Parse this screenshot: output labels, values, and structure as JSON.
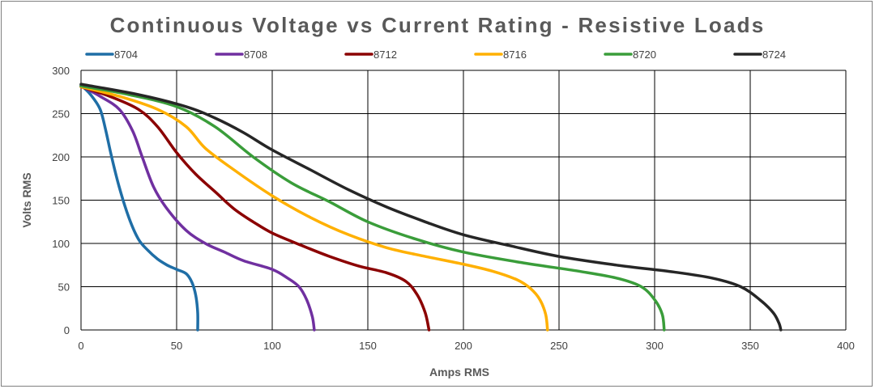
{
  "chart_data": {
    "type": "line",
    "title": "Continuous Voltage vs Current Rating - Resistive Loads",
    "xlabel": "Amps RMS",
    "ylabel": "Volts RMS",
    "xlim": [
      0,
      400
    ],
    "ylim": [
      0,
      300
    ],
    "x_ticks": [
      0,
      50,
      100,
      150,
      200,
      250,
      300,
      350,
      400
    ],
    "y_ticks": [
      0,
      50,
      100,
      150,
      200,
      250,
      300
    ],
    "grid": true,
    "legend_position": "top",
    "series": [
      {
        "name": "8704",
        "color": "#1f6ea6",
        "points": [
          [
            0,
            283
          ],
          [
            5,
            272
          ],
          [
            10,
            255
          ],
          [
            13,
            230
          ],
          [
            16,
            200
          ],
          [
            20,
            165
          ],
          [
            25,
            130
          ],
          [
            30,
            105
          ],
          [
            35,
            92
          ],
          [
            40,
            82
          ],
          [
            45,
            75
          ],
          [
            50,
            70
          ],
          [
            55,
            65
          ],
          [
            58,
            55
          ],
          [
            60,
            40
          ],
          [
            61,
            20
          ],
          [
            61,
            0
          ]
        ]
      },
      {
        "name": "8708",
        "color": "#7030a0",
        "points": [
          [
            0,
            282
          ],
          [
            10,
            270
          ],
          [
            20,
            255
          ],
          [
            27,
            230
          ],
          [
            32,
            200
          ],
          [
            38,
            165
          ],
          [
            45,
            140
          ],
          [
            55,
            115
          ],
          [
            65,
            100
          ],
          [
            75,
            90
          ],
          [
            85,
            80
          ],
          [
            100,
            70
          ],
          [
            108,
            60
          ],
          [
            114,
            50
          ],
          [
            118,
            35
          ],
          [
            121,
            15
          ],
          [
            122,
            0
          ]
        ]
      },
      {
        "name": "8712",
        "color": "#8b0000",
        "points": [
          [
            0,
            281
          ],
          [
            15,
            270
          ],
          [
            30,
            255
          ],
          [
            40,
            235
          ],
          [
            50,
            205
          ],
          [
            60,
            180
          ],
          [
            70,
            160
          ],
          [
            80,
            140
          ],
          [
            90,
            125
          ],
          [
            100,
            112
          ],
          [
            115,
            98
          ],
          [
            130,
            85
          ],
          [
            145,
            74
          ],
          [
            160,
            66
          ],
          [
            170,
            56
          ],
          [
            176,
            40
          ],
          [
            180,
            20
          ],
          [
            182,
            0
          ]
        ]
      },
      {
        "name": "8716",
        "color": "#ffb000",
        "points": [
          [
            0,
            281
          ],
          [
            20,
            270
          ],
          [
            40,
            255
          ],
          [
            55,
            235
          ],
          [
            65,
            210
          ],
          [
            80,
            185
          ],
          [
            100,
            155
          ],
          [
            120,
            130
          ],
          [
            140,
            110
          ],
          [
            160,
            95
          ],
          [
            180,
            85
          ],
          [
            200,
            76
          ],
          [
            215,
            68
          ],
          [
            228,
            58
          ],
          [
            235,
            48
          ],
          [
            240,
            35
          ],
          [
            243,
            18
          ],
          [
            244,
            0
          ]
        ]
      },
      {
        "name": "8720",
        "color": "#3a9d3a",
        "points": [
          [
            0,
            282
          ],
          [
            25,
            272
          ],
          [
            50,
            258
          ],
          [
            70,
            235
          ],
          [
            90,
            200
          ],
          [
            110,
            170
          ],
          [
            130,
            148
          ],
          [
            150,
            125
          ],
          [
            175,
            105
          ],
          [
            200,
            90
          ],
          [
            230,
            78
          ],
          [
            260,
            68
          ],
          [
            280,
            60
          ],
          [
            293,
            50
          ],
          [
            300,
            35
          ],
          [
            304,
            18
          ],
          [
            305,
            0
          ]
        ]
      },
      {
        "name": "8724",
        "color": "#262626",
        "points": [
          [
            0,
            284
          ],
          [
            30,
            272
          ],
          [
            55,
            258
          ],
          [
            70,
            245
          ],
          [
            85,
            228
          ],
          [
            100,
            208
          ],
          [
            120,
            185
          ],
          [
            140,
            162
          ],
          [
            160,
            142
          ],
          [
            180,
            125
          ],
          [
            200,
            110
          ],
          [
            225,
            97
          ],
          [
            250,
            85
          ],
          [
            280,
            75
          ],
          [
            310,
            67
          ],
          [
            330,
            60
          ],
          [
            345,
            50
          ],
          [
            355,
            35
          ],
          [
            362,
            20
          ],
          [
            365,
            8
          ],
          [
            366,
            0
          ]
        ]
      }
    ]
  }
}
